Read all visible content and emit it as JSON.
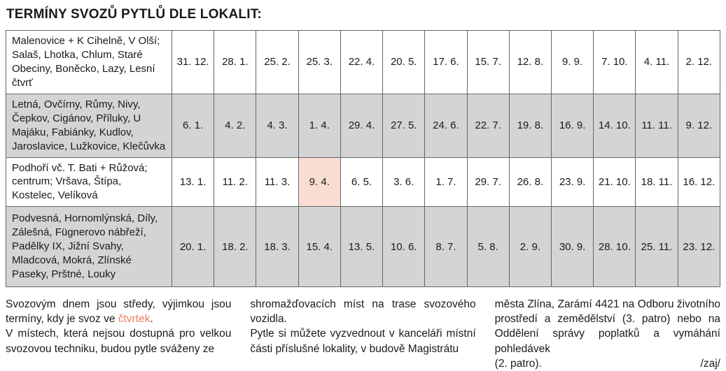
{
  "page": {
    "title": "TERMÍNY SVOZŮ PYTLŮ DLE LOKALIT:"
  },
  "colors": {
    "row_gray": "#d4d4d6",
    "highlight_cell": "#f9ddd2",
    "accent_text": "#ee7d5f",
    "table_border": "#666666"
  },
  "table": {
    "rows": [
      {
        "locality": "Malenovice + K Cihelně, V Olší; Salaš, Lhotka, Chlum, Staré Obeciny, Boněcko, Lazy, Lesní čtvrť",
        "dates": [
          "31. 12.",
          "28. 1.",
          "25. 2.",
          "25. 3.",
          "22. 4.",
          "20. 5.",
          "17. 6.",
          "15. 7.",
          "12. 8.",
          "9. 9.",
          "7. 10.",
          "4. 11.",
          "2. 12."
        ],
        "highlight_index": null
      },
      {
        "locality": "Letná, Ovčírny, Růmy, Nivy, Čepkov, Cigánov, Příluky, U Majáku, Fabiánky, Kudlov, Jaroslavice, Lužkovice, Klečůvka",
        "dates": [
          "6. 1.",
          "4. 2.",
          "4. 3.",
          "1. 4.",
          "29. 4.",
          "27. 5.",
          "24. 6.",
          "22. 7.",
          "19. 8.",
          "16. 9.",
          "14. 10.",
          "11. 11.",
          "9. 12."
        ],
        "highlight_index": null
      },
      {
        "locality": "Podhoří vč. T. Bati + Růžová; centrum; Vršava, Štípa, Kostelec, Velíková",
        "dates": [
          "13. 1.",
          "11. 2.",
          "11. 3.",
          "9. 4.",
          "6. 5.",
          "3. 6.",
          "1. 7.",
          "29. 7.",
          "26. 8.",
          "23. 9.",
          "21. 10.",
          "18. 11.",
          "16. 12."
        ],
        "highlight_index": 3
      },
      {
        "locality": "Podvesná, Hornomlýnská, Díly, Zálešná, Fügnerovo nábřeží, Padělky IX, Jižní Svahy, Mladcová, Mokrá, Zlínské Paseky, Prštné, Louky",
        "dates": [
          "20. 1.",
          "18. 2.",
          "18. 3.",
          "15. 4.",
          "13. 5.",
          "10. 6.",
          "8. 7.",
          "5. 8.",
          "2. 9.",
          "30. 9.",
          "28. 10.",
          "25. 11.",
          "23. 12."
        ],
        "highlight_index": null
      }
    ]
  },
  "footer": {
    "col1": {
      "p1_before": "Svozovým dnem jsou středy, výjimkou jsou termíny, kdy je svoz ve ",
      "p1_highlight": "čtvrtek",
      "p1_after": ".",
      "p2": "V místech, která nejsou dostupná pro velkou svozovou techniku, budou pytle sváženy ze"
    },
    "col2": {
      "p1": "shromažďovacích míst na trase svozového vozidla.",
      "p2": "Pytle si můžete vyzvednout v kanceláři místní části příslušné lokality, v budově Magistrátu"
    },
    "col3": {
      "p1": "města Zlína, Zarámí 4421 na Odboru životního prostředí a zemědělství (3. patro) nebo na Oddělení správy poplatků a vymáhání pohledávek",
      "last_line_left": "(2. patro).",
      "signature": "/zaj/"
    }
  }
}
